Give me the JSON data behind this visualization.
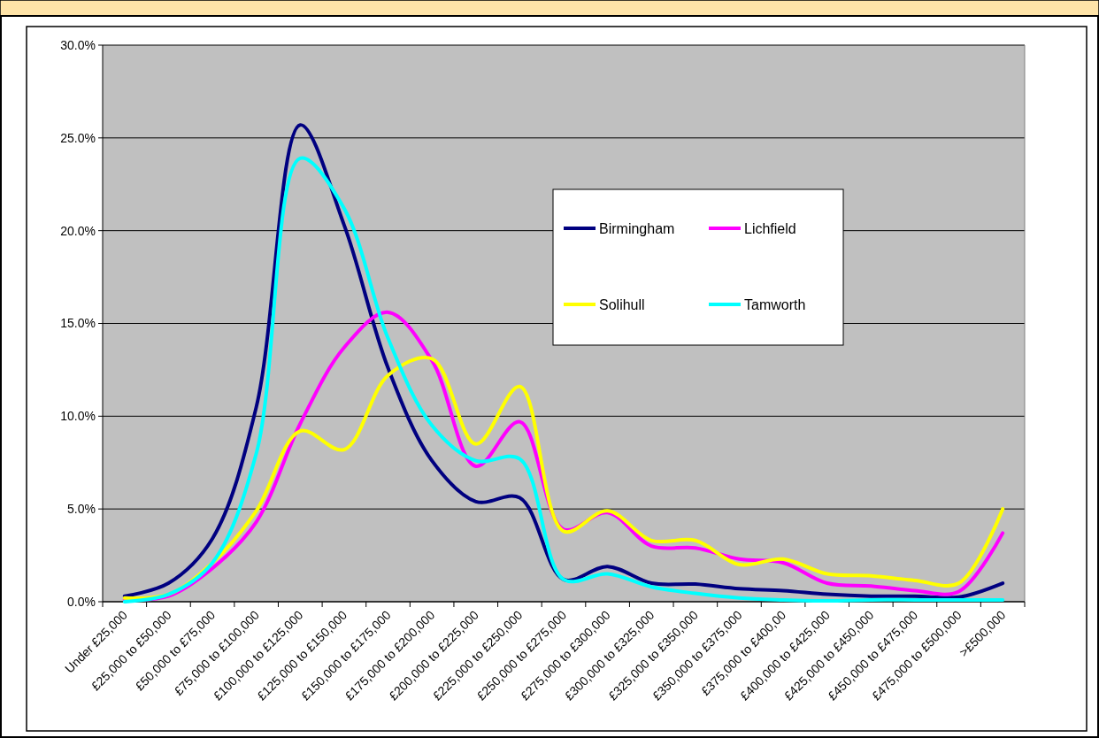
{
  "chart_data": {
    "type": "line",
    "categories": [
      "Under £25,000",
      "£25,000 to £50,000",
      "£50,000 to £75,000",
      "£75,000 to £100,000",
      "£100,000 to £125,000",
      "£125,000 to £150,000",
      "£150,000 to £175,000",
      "£175,000 to £200,000",
      "£200,000 to £225,000",
      "£225,000 to £250,000",
      "£250,000 to £275,000",
      "£275,000 to £300,000",
      "£300,000 to £325,000",
      "£325,000 to £350,000",
      "£350,000 to £375,000",
      "£375,000 to £400,00",
      "£400,000 to £425,000",
      "£425,000 to £450,000",
      "£450,000 to £475,000",
      "£475,000 to £500,000",
      ">£500,000"
    ],
    "series": [
      {
        "name": "Birmingham",
        "color": "#000080",
        "values": [
          0.3,
          1.0,
          3.4,
          10.5,
          25.7,
          20.3,
          12.6,
          7.6,
          5.4,
          5.6,
          1.2,
          1.9,
          1.0,
          0.95,
          0.7,
          0.6,
          0.4,
          0.3,
          0.3,
          0.25,
          1.0
        ]
      },
      {
        "name": "Lichfield",
        "color": "#ff00ff",
        "values": [
          0.1,
          0.3,
          1.8,
          4.3,
          9.6,
          13.7,
          15.6,
          13.0,
          7.3,
          9.7,
          3.9,
          4.8,
          3.0,
          2.9,
          2.3,
          2.1,
          1.0,
          0.85,
          0.6,
          0.55,
          3.7
        ]
      },
      {
        "name": "Solihull",
        "color": "#ffff00",
        "values": [
          0.2,
          0.4,
          2.1,
          4.9,
          9.2,
          8.2,
          12.2,
          13.1,
          8.5,
          11.6,
          3.8,
          4.9,
          3.3,
          3.3,
          2.0,
          2.3,
          1.5,
          1.4,
          1.15,
          1.0,
          5.0
        ]
      },
      {
        "name": "Tamworth",
        "color": "#00ffff",
        "values": [
          0.0,
          0.4,
          2.1,
          8.0,
          23.9,
          21.2,
          14.2,
          9.5,
          7.6,
          7.7,
          1.2,
          1.5,
          0.8,
          0.45,
          0.2,
          0.1,
          0.05,
          0.1,
          0.1,
          0.1,
          0.1
        ]
      }
    ],
    "ylim": [
      0,
      30
    ],
    "yticks": [
      {
        "value": 0,
        "label": "0.0%"
      },
      {
        "value": 5,
        "label": "5.0%"
      },
      {
        "value": 10,
        "label": "10.0%"
      },
      {
        "value": 15,
        "label": "15.0%"
      },
      {
        "value": 20,
        "label": "20.0%"
      },
      {
        "value": 25,
        "label": "25.0%"
      },
      {
        "value": 30,
        "label": "30.0%"
      }
    ],
    "grid": "y",
    "legend": "right",
    "marker": "none",
    "line_style": "solid"
  }
}
